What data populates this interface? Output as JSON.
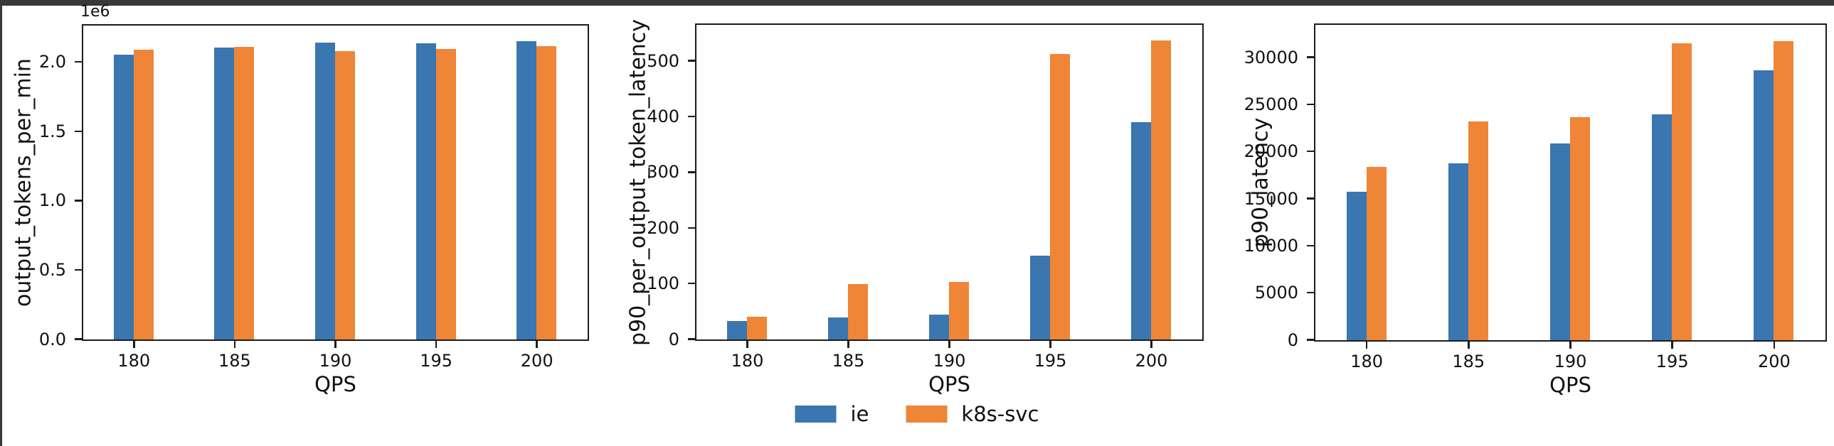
{
  "frame": {
    "top_bar_color": "#39393c",
    "left_bar_color": "#39393c",
    "background": "#ffffff"
  },
  "colors": {
    "series_blue": "#3a76af",
    "series_orange": "#ef8536",
    "axis": "#1c1c1c"
  },
  "legend": {
    "position": "bottom-center",
    "items": [
      {
        "label": "ie",
        "color": "#3a76af"
      },
      {
        "label": "k8s-svc",
        "color": "#ef8536"
      }
    ]
  },
  "chart_data": [
    {
      "type": "bar",
      "title": "",
      "xlabel": "QPS",
      "ylabel": "output_tokens_per_min",
      "offset_text": "1e6",
      "grid": false,
      "categories": [
        "180",
        "185",
        "190",
        "195",
        "200"
      ],
      "series": [
        {
          "name": "ie",
          "color": "#3a76af",
          "values": [
            2056000,
            2107000,
            2144000,
            2137000,
            2152000
          ]
        },
        {
          "name": "k8s-svc",
          "color": "#ef8536",
          "values": [
            2093000,
            2112000,
            2081000,
            2095000,
            2115000
          ]
        }
      ],
      "ylim": [
        0,
        2260000
      ],
      "yticks": {
        "values": [
          0,
          500000,
          1000000,
          1500000,
          2000000
        ],
        "labels": [
          "0.0",
          "0.5",
          "1.0",
          "1.5",
          "2.0"
        ]
      }
    },
    {
      "type": "bar",
      "title": "",
      "xlabel": "QPS",
      "ylabel": "p90_per_output_token_latency",
      "offset_text": "",
      "grid": false,
      "categories": [
        "180",
        "185",
        "190",
        "195",
        "200"
      ],
      "series": [
        {
          "name": "ie",
          "color": "#3a76af",
          "values": [
            33,
            39,
            45,
            150,
            391
          ]
        },
        {
          "name": "k8s-svc",
          "color": "#ef8536",
          "values": [
            41,
            100,
            104,
            513,
            537
          ]
        }
      ],
      "ylim": [
        0,
        564
      ],
      "yticks": {
        "values": [
          0,
          100,
          200,
          300,
          400,
          500
        ],
        "labels": [
          "0",
          "100",
          "200",
          "300",
          "400",
          "500"
        ]
      }
    },
    {
      "type": "bar",
      "title": "",
      "xlabel": "QPS",
      "ylabel": "p90_latency",
      "offset_text": "",
      "grid": false,
      "categories": [
        "180",
        "185",
        "190",
        "195",
        "200"
      ],
      "series": [
        {
          "name": "ie",
          "color": "#3a76af",
          "values": [
            15750,
            18800,
            20900,
            23950,
            28650
          ]
        },
        {
          "name": "k8s-svc",
          "color": "#ef8536",
          "values": [
            18400,
            23200,
            23700,
            31500,
            31750
          ]
        }
      ],
      "ylim": [
        0,
        33400
      ],
      "yticks": {
        "values": [
          0,
          5000,
          10000,
          15000,
          20000,
          25000,
          30000
        ],
        "labels": [
          "0",
          "5000",
          "10000",
          "15000",
          "20000",
          "25000",
          "30000"
        ]
      }
    }
  ]
}
